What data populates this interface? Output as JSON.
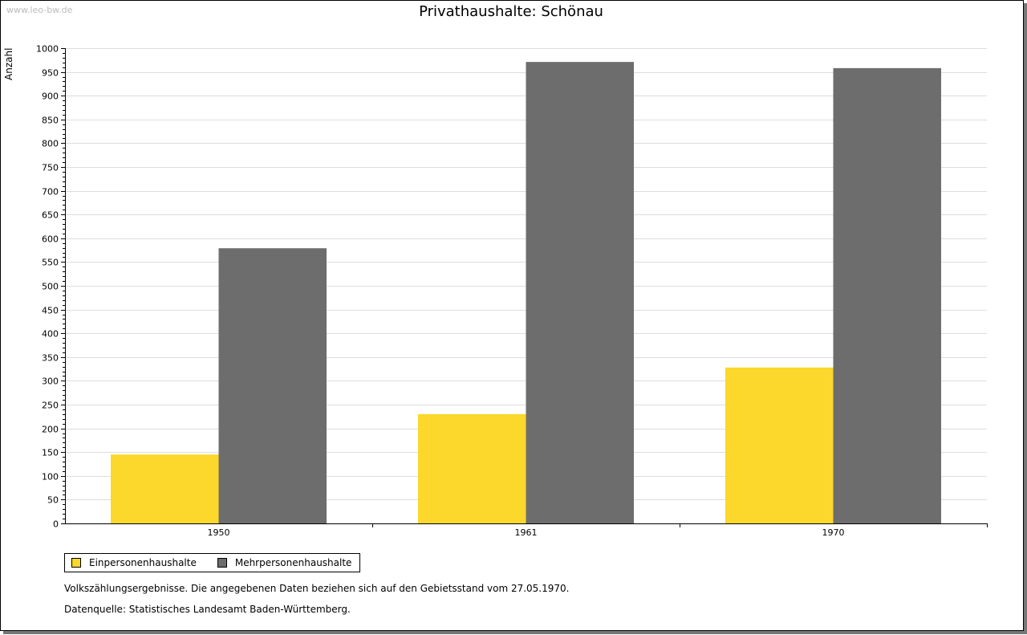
{
  "watermark": "www.leo-bw.de",
  "chart_data": {
    "type": "bar",
    "title": "Privathaushalte: Schönau",
    "ylabel": "Anzahl",
    "xlabel": "",
    "ylim": [
      0,
      1000
    ],
    "ytick_step": 50,
    "grid": true,
    "categories": [
      "1950",
      "1961",
      "1970"
    ],
    "series": [
      {
        "name": "Einpersonenhaushalte",
        "color": "#fcd72c",
        "values": [
          145,
          230,
          328
        ]
      },
      {
        "name": "Mehrpersonenhaushalte",
        "color": "#6d6d6d",
        "values": [
          579,
          971,
          958
        ]
      }
    ],
    "legend_position": "bottom-left"
  },
  "notes": [
    "Volkszählungsergebnisse. Die angegebenen Daten beziehen sich auf den Gebietsstand vom 27.05.1970.",
    "Datenquelle: Statistisches Landesamt Baden-Württemberg."
  ]
}
